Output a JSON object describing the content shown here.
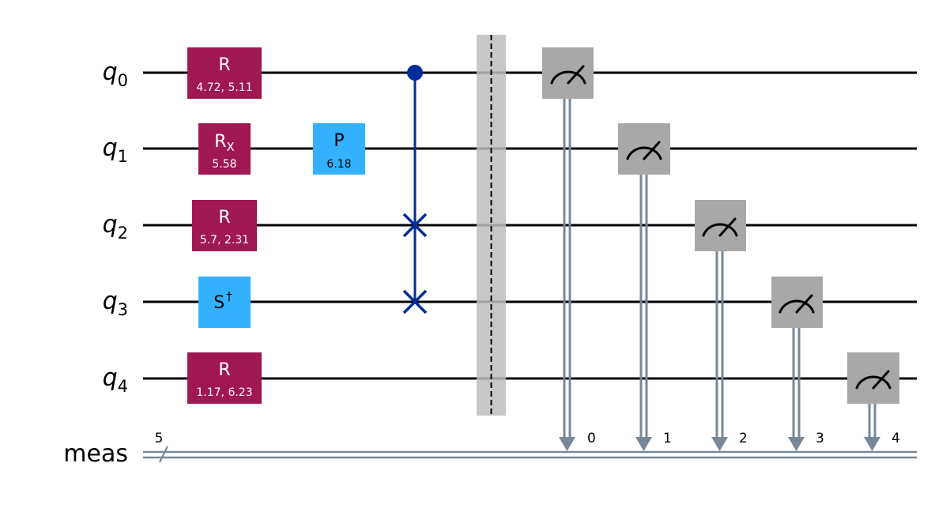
{
  "qubits": [
    {
      "sym": "q",
      "sub": "0"
    },
    {
      "sym": "q",
      "sub": "1"
    },
    {
      "sym": "q",
      "sub": "2"
    },
    {
      "sym": "q",
      "sub": "3"
    },
    {
      "sym": "q",
      "sub": "4"
    }
  ],
  "classical_register": {
    "label": "meas",
    "size": "5"
  },
  "gates": [
    {
      "qubit": 0,
      "name": "R",
      "sub": "",
      "sup": "",
      "param": "4.72, 5.11",
      "color": "#9f1853",
      "text_color": "#ffffff"
    },
    {
      "qubit": 1,
      "name": "R",
      "sub": "X",
      "sup": "",
      "param": "5.58",
      "color": "#9f1853",
      "text_color": "#ffffff"
    },
    {
      "qubit": 1,
      "name": "P",
      "sub": "",
      "sup": "",
      "param": "6.18",
      "color": "#33b1ff",
      "text_color": "#000000"
    },
    {
      "qubit": 2,
      "name": "R",
      "sub": "",
      "sup": "",
      "param": "5.7, 2.31",
      "color": "#9f1853",
      "text_color": "#ffffff"
    },
    {
      "qubit": 3,
      "name": "S",
      "sub": "",
      "sup": "†",
      "param": "",
      "color": "#33b1ff",
      "text_color": "#000000"
    },
    {
      "qubit": 4,
      "name": "R",
      "sub": "",
      "sup": "",
      "param": "1.17, 6.23",
      "color": "#9f1853",
      "text_color": "#ffffff"
    }
  ],
  "controlled_swap": {
    "control": 0,
    "targets": [
      2,
      3
    ],
    "color": "#002d9c"
  },
  "barrier": {
    "color": "#bdbdbd"
  },
  "measurements": [
    {
      "qubit": 0,
      "clbit": "0"
    },
    {
      "qubit": 1,
      "clbit": "1"
    },
    {
      "qubit": 2,
      "clbit": "2"
    },
    {
      "qubit": 3,
      "clbit": "3"
    },
    {
      "qubit": 4,
      "clbit": "4"
    }
  ],
  "colors": {
    "measure_box": "#a8a8a8",
    "classical_wire": "#778899",
    "wire": "#000000"
  }
}
